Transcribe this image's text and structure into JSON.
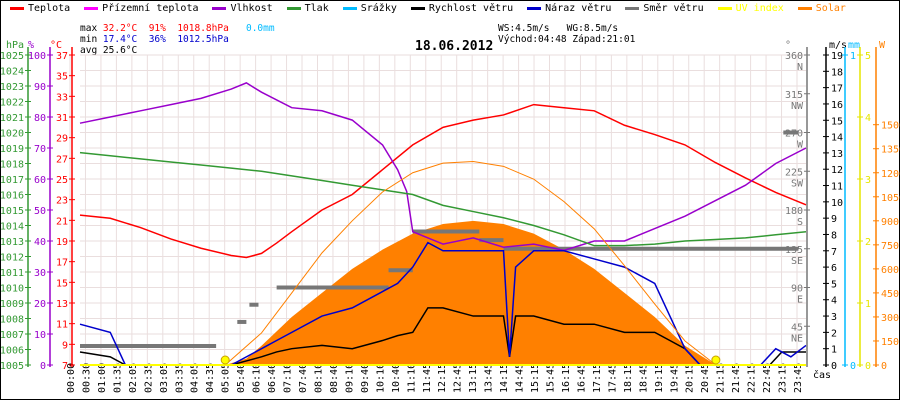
{
  "legend": [
    {
      "label": "Teplota",
      "color": "#ff0000"
    },
    {
      "label": "Přízemní teplota",
      "color": "#ff00ff"
    },
    {
      "label": "Vlhkost",
      "color": "#9900cc"
    },
    {
      "label": "Tlak",
      "color": "#339933"
    },
    {
      "label": "Srážky",
      "color": "#00bbff"
    },
    {
      "label": "Rychlost větru",
      "color": "#000000"
    },
    {
      "label": "Náraz větru",
      "color": "#0000cc"
    },
    {
      "label": "Směr větru",
      "color": "#777777"
    },
    {
      "label": "UV index",
      "color": "#ffff00"
    },
    {
      "label": "Solar",
      "color": "#ff8000"
    }
  ],
  "stats": {
    "max_label": "max",
    "max_temp": "32.2°C",
    "max_hum": "91%",
    "max_press": "1018.8hPa",
    "rain": "0.0mm",
    "min_label": "min",
    "min_temp": "17.4°C",
    "min_hum": "36%",
    "min_press": "1012.5hPa",
    "avg_label": "avg",
    "avg_temp": "25.6°C",
    "ws": "WS:4.5m/s",
    "wg": "WG:8.5m/s",
    "sunrise": "Východ:04:48",
    "sunset": "Západ:21:01"
  },
  "chart_data": {
    "type": "line",
    "title": "18.06.2012",
    "xlabel": "čas",
    "x_ticks": [
      "00:00",
      "00:30",
      "01:00",
      "01:35",
      "02:05",
      "02:35",
      "03:05",
      "03:35",
      "04:05",
      "04:35",
      "05:05",
      "05:40",
      "06:10",
      "06:40",
      "07:10",
      "07:40",
      "08:10",
      "08:40",
      "09:10",
      "09:40",
      "10:10",
      "10:40",
      "11:10",
      "11:45",
      "12:15",
      "12:45",
      "13:15",
      "13:45",
      "14:15",
      "14:45",
      "15:15",
      "15:45",
      "16:15",
      "16:45",
      "17:15",
      "17:45",
      "18:15",
      "18:45",
      "19:15",
      "19:45",
      "20:15",
      "20:45",
      "21:15",
      "21:45",
      "22:15",
      "22:45",
      "23:15",
      "23:45"
    ],
    "axes": {
      "hPa": {
        "label": "hPa",
        "range": [
          1005,
          1025
        ],
        "ticks": [
          1005,
          1006,
          1007,
          1008,
          1009,
          1010,
          1011,
          1012,
          1013,
          1014,
          1015,
          1016,
          1017,
          1018,
          1019,
          1020,
          1021,
          1022,
          1023,
          1024,
          1025
        ]
      },
      "pct": {
        "label": "%",
        "range": [
          0,
          100
        ],
        "ticks": [
          0,
          10,
          20,
          30,
          40,
          50,
          60,
          70,
          80,
          90,
          100
        ]
      },
      "degC": {
        "label": "°C",
        "range": [
          7,
          37
        ],
        "ticks": [
          7,
          9,
          11,
          13,
          15,
          17,
          19,
          21,
          23,
          25,
          27,
          29,
          31,
          33,
          35,
          37
        ]
      },
      "dir": {
        "label": "°",
        "range": [
          0,
          360
        ],
        "ticks": [
          {
            "v": 45,
            "c": "NE"
          },
          {
            "v": 90,
            "c": "E"
          },
          {
            "v": 135,
            "c": "SE"
          },
          {
            "v": 180,
            "c": "S"
          },
          {
            "v": 225,
            "c": "SW"
          },
          {
            "v": 270,
            "c": "W"
          },
          {
            "v": 315,
            "c": "NW"
          },
          {
            "v": 360,
            "c": "N"
          }
        ]
      },
      "ms": {
        "label": "m/s",
        "range": [
          0,
          19
        ],
        "ticks": [
          0,
          1,
          2,
          3,
          4,
          5,
          6,
          7,
          8,
          9,
          10,
          11,
          12,
          13,
          14,
          15,
          16,
          17,
          18,
          19
        ]
      },
      "mm": {
        "label": "mm",
        "range": [
          0,
          1
        ],
        "ticks": [
          0,
          1
        ]
      },
      "uv": {
        "label": "",
        "range": [
          0,
          5
        ],
        "ticks": [
          0,
          1,
          2,
          3,
          4,
          5
        ]
      },
      "W": {
        "label": "W",
        "range": [
          0,
          1935
        ],
        "ticks": [
          0,
          150,
          300,
          450,
          600,
          750,
          900,
          1050,
          1200,
          1350,
          1500
        ]
      }
    },
    "series": [
      {
        "name": "Teplota",
        "axis": "degC",
        "color": "#ff0000",
        "t": [
          0,
          1,
          2,
          3,
          4,
          5,
          5.5,
          6,
          6.5,
          7,
          8,
          9,
          10,
          11,
          12,
          13,
          14,
          15,
          16,
          17,
          18,
          19,
          20,
          21,
          22,
          23,
          24
        ],
        "values": [
          21.5,
          21.2,
          20.3,
          19.2,
          18.3,
          17.6,
          17.4,
          17.8,
          18.8,
          19.9,
          22,
          23.5,
          25.9,
          28.3,
          30,
          30.7,
          31.2,
          32.2,
          31.9,
          31.6,
          30.2,
          29.3,
          28.3,
          26.6,
          25.1,
          23.7,
          22.5
        ]
      },
      {
        "name": "Vlhkost",
        "axis": "pct",
        "color": "#9900cc",
        "t": [
          0,
          1,
          2,
          3,
          4,
          5,
          5.5,
          6,
          7,
          8,
          9,
          10,
          10.5,
          10.8,
          11,
          12,
          13,
          14,
          15,
          16,
          17,
          18,
          19,
          20,
          21,
          22,
          23,
          24
        ],
        "values": [
          78,
          80,
          82,
          84,
          86,
          89,
          91,
          88,
          83,
          82,
          79,
          71,
          63,
          56,
          43,
          39,
          41,
          38,
          39,
          37,
          40,
          40,
          44,
          48,
          53,
          58,
          65,
          70
        ]
      },
      {
        "name": "Tlak",
        "axis": "hPa",
        "color": "#339933",
        "t": [
          0,
          1,
          2,
          3,
          4,
          5,
          6,
          7,
          8,
          9,
          10,
          11,
          12,
          13,
          14,
          15,
          16,
          17,
          18,
          19,
          20,
          21,
          22,
          23,
          24
        ],
        "values": [
          1018.7,
          1018.5,
          1018.3,
          1018.1,
          1017.9,
          1017.7,
          1017.5,
          1017.2,
          1016.9,
          1016.6,
          1016.3,
          1016.0,
          1015.3,
          1014.9,
          1014.5,
          1014.0,
          1013.4,
          1012.7,
          1012.7,
          1012.8,
          1013.0,
          1013.1,
          1013.2,
          1013.4,
          1013.6
        ]
      },
      {
        "name": "Rychlost větru",
        "axis": "ms",
        "color": "#000000",
        "t": [
          0,
          1,
          1.5,
          2,
          5,
          6,
          6.5,
          7,
          8,
          9,
          10,
          10.5,
          11,
          11.5,
          12,
          13,
          14,
          14.2,
          14.4,
          15,
          16,
          17,
          18,
          19,
          19.5,
          20,
          20.5,
          22.8,
          23.2,
          24
        ],
        "values": [
          0.8,
          0.5,
          0,
          0,
          0,
          0.5,
          0.8,
          1,
          1.2,
          1,
          1.5,
          1.8,
          2,
          3.5,
          3.5,
          3,
          3,
          0.5,
          3,
          3,
          2.5,
          2.5,
          2,
          2,
          1.5,
          1,
          0,
          0,
          0.8,
          0.8
        ]
      },
      {
        "name": "Náraz větru",
        "axis": "ms",
        "color": "#0000cc",
        "t": [
          0,
          1,
          1.5,
          2,
          5,
          6,
          6.5,
          7,
          8,
          9,
          10,
          10.5,
          11,
          11.5,
          12,
          13,
          14,
          14.2,
          14.4,
          15,
          16,
          17,
          18,
          19,
          19.5,
          20,
          20.5,
          22.5,
          23,
          23.5,
          24
        ],
        "values": [
          2.5,
          2,
          0,
          0,
          0,
          1,
          1.5,
          2,
          3,
          3.5,
          4.5,
          5,
          6,
          7.5,
          7,
          7,
          7,
          0.5,
          6,
          7,
          7,
          6.5,
          6,
          5,
          3,
          1,
          0,
          0,
          1,
          0.5,
          1.2
        ]
      },
      {
        "name": "Solar",
        "axis": "W",
        "color": "#ff8000",
        "type": "area",
        "t": [
          4.8,
          5.5,
          6,
          7,
          8,
          9,
          10,
          11,
          12,
          13,
          14,
          15,
          16,
          17,
          18,
          19,
          20,
          21.02
        ],
        "values": [
          0,
          40,
          120,
          300,
          450,
          600,
          720,
          820,
          880,
          900,
          880,
          820,
          720,
          600,
          450,
          300,
          120,
          0
        ]
      },
      {
        "name": "Solar max",
        "axis": "W",
        "color": "#ff8000",
        "t": [
          4.8,
          6,
          7,
          8,
          9,
          10,
          11,
          12,
          13,
          14,
          15,
          16,
          17,
          18,
          19,
          20,
          21.02
        ],
        "values": [
          0,
          200,
          450,
          700,
          900,
          1080,
          1200,
          1260,
          1270,
          1240,
          1160,
          1020,
          850,
          620,
          380,
          150,
          0
        ]
      }
    ],
    "wind_direction": [
      [
        0,
        4.5,
        22
      ],
      [
        5.2,
        5.5,
        50
      ],
      [
        5.6,
        5.9,
        70
      ],
      [
        6.5,
        10.2,
        90
      ],
      [
        10.2,
        11,
        110
      ],
      [
        11,
        12,
        155
      ],
      [
        12,
        13.2,
        155
      ],
      [
        13.2,
        14,
        145
      ],
      [
        14,
        23.75,
        135
      ],
      [
        23.25,
        23.75,
        270
      ]
    ],
    "uv_markers": [
      4.8,
      21.02
    ],
    "rain": 0.0
  }
}
